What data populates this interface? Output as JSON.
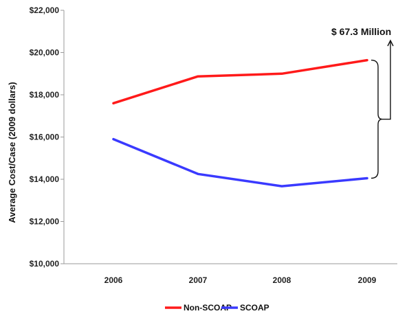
{
  "chart_data": {
    "type": "line",
    "title": "",
    "xlabel": "",
    "ylabel": "Average Cost/Case (2009 dollars)",
    "categories": [
      "2006",
      "2007",
      "2008",
      "2009"
    ],
    "ylim": [
      10000,
      22000
    ],
    "yticks": [
      10000,
      12000,
      14000,
      16000,
      18000,
      20000,
      22000
    ],
    "ytick_labels": [
      "$10,000",
      "$12,000",
      "$14,000",
      "$16,000",
      "$18,000",
      "$20,000",
      "$22,000"
    ],
    "grid": false,
    "legend_position": "bottom",
    "series": [
      {
        "name": "Non-SCOAP",
        "color": "#ff1a1a",
        "values": [
          17600,
          18870,
          19000,
          19640
        ]
      },
      {
        "name": "SCOAP",
        "color": "#3a3aff",
        "values": [
          15900,
          14250,
          13670,
          14050
        ]
      }
    ],
    "annotation": "$ 67.3 Million"
  }
}
